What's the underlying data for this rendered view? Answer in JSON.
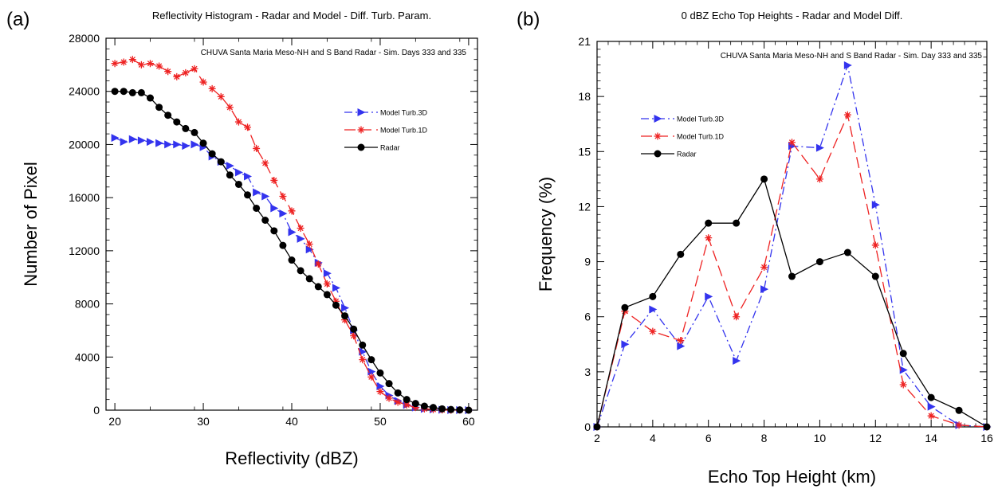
{
  "chart_data": [
    {
      "panel": "(a)",
      "type": "line",
      "title": "Reflectivity Histogram - Radar and Model - Diff. Turb. Param.",
      "annotation": "CHUVA Santa Maria  Meso-NH and S Band Radar - Sim. Days 333 and 335",
      "xlabel": "Reflectivity (dBZ)",
      "ylabel": "Number of Pixel",
      "xlim": [
        19,
        61
      ],
      "ylim": [
        0,
        28000
      ],
      "xticks": [
        20,
        30,
        40,
        50,
        60
      ],
      "yticks": [
        0,
        4000,
        8000,
        12000,
        16000,
        20000,
        24000,
        28000
      ],
      "grid": false,
      "legend_position": "upper-right",
      "x": [
        20,
        21,
        22,
        23,
        24,
        25,
        26,
        27,
        28,
        29,
        30,
        31,
        32,
        33,
        34,
        35,
        36,
        37,
        38,
        39,
        40,
        41,
        42,
        43,
        44,
        45,
        46,
        47,
        48,
        49,
        50,
        51,
        52,
        53,
        54,
        55,
        56,
        57,
        58,
        59,
        60
      ],
      "series": [
        {
          "name": "Model Turb.3D",
          "color": "#3333ee",
          "marker": "triangle-right",
          "dash": "dash-dot",
          "values": [
            20500,
            20200,
            20400,
            20300,
            20200,
            20100,
            20000,
            20000,
            19900,
            20000,
            19800,
            19100,
            18700,
            18400,
            17900,
            17600,
            16400,
            16100,
            15200,
            14800,
            13400,
            12900,
            12100,
            11100,
            10300,
            9200,
            7700,
            6000,
            4400,
            2900,
            1800,
            1100,
            700,
            400,
            200,
            100,
            60,
            30,
            10,
            5,
            0
          ]
        },
        {
          "name": "Model Turb.1D",
          "color": "#ee2222",
          "marker": "asterisk",
          "dash": "dashed",
          "values": [
            26100,
            26200,
            26400,
            26000,
            26100,
            25900,
            25500,
            25100,
            25400,
            25700,
            24700,
            24200,
            23600,
            22800,
            21700,
            21300,
            19700,
            18600,
            17300,
            16100,
            15000,
            13700,
            12500,
            11000,
            9500,
            8200,
            6800,
            5600,
            3800,
            2500,
            1400,
            900,
            600,
            400,
            200,
            100,
            50,
            20,
            10,
            5,
            0
          ]
        },
        {
          "name": "Radar",
          "color": "#000000",
          "marker": "circle",
          "dash": "solid",
          "values": [
            24000,
            24000,
            23900,
            23900,
            23500,
            22800,
            22200,
            21700,
            21200,
            20900,
            20100,
            19300,
            18700,
            17700,
            17000,
            16200,
            15200,
            14300,
            13500,
            12400,
            11300,
            10500,
            9900,
            9300,
            8700,
            7900,
            7100,
            6100,
            4900,
            3800,
            2800,
            2000,
            1300,
            800,
            500,
            300,
            200,
            100,
            50,
            20,
            0
          ]
        }
      ]
    },
    {
      "panel": "(b)",
      "type": "line",
      "title": "0 dBZ  Echo Top Heights - Radar and Model Diff.",
      "annotation": "CHUVA Santa Maria  Meso-NH and S Band Radar - Sim. Day 333 and 335",
      "xlabel": "Echo Top Height (km)",
      "ylabel": "Frequency (%)",
      "xlim": [
        2,
        16
      ],
      "ylim": [
        0,
        21
      ],
      "xticks": [
        2,
        4,
        6,
        8,
        10,
        12,
        14,
        16
      ],
      "yticks": [
        0,
        3,
        6,
        9,
        12,
        15,
        18,
        21
      ],
      "grid": false,
      "legend_position": "upper-left",
      "x": [
        2,
        3,
        4,
        5,
        6,
        7,
        8,
        9,
        10,
        11,
        12,
        13,
        14,
        15,
        16
      ],
      "series": [
        {
          "name": "Model Turb.3D",
          "color": "#3333ee",
          "marker": "triangle-right",
          "dash": "dash-dot",
          "values": [
            0,
            4.5,
            6.4,
            4.4,
            7.1,
            3.6,
            7.5,
            15.3,
            15.2,
            19.7,
            12.1,
            3.1,
            1.1,
            0.1,
            0
          ]
        },
        {
          "name": "Model Turb.1D",
          "color": "#ee2222",
          "marker": "asterisk",
          "dash": "dashed",
          "values": [
            0,
            6.3,
            5.2,
            4.7,
            10.3,
            6.0,
            8.7,
            15.5,
            13.5,
            17.0,
            9.9,
            2.3,
            0.6,
            0.1,
            0
          ]
        },
        {
          "name": "Radar",
          "color": "#000000",
          "marker": "circle",
          "dash": "solid",
          "values": [
            0,
            6.5,
            7.1,
            9.4,
            11.1,
            11.1,
            13.5,
            8.2,
            9.0,
            9.5,
            8.2,
            4.0,
            1.6,
            0.9,
            0
          ]
        }
      ]
    }
  ]
}
